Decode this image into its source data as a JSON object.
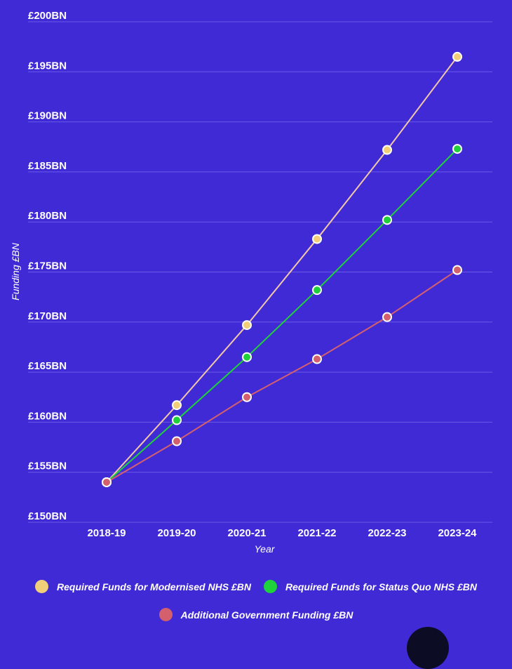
{
  "chart_data": {
    "type": "line",
    "categories": [
      "2018-19",
      "2019-20",
      "2020-21",
      "2021-22",
      "2022-23",
      "2023-24"
    ],
    "xlabel": "Year",
    "ylabel": "Funding £BN",
    "ylim": [
      150,
      200
    ],
    "yticks": [
      150,
      155,
      160,
      165,
      170,
      175,
      180,
      185,
      190,
      195,
      200
    ],
    "ytick_labels": [
      "£150BN",
      "£155BN",
      "£160BN",
      "£165BN",
      "£170BN",
      "£175BN",
      "£180BN",
      "£185BN",
      "£190BN",
      "£195BN",
      "£200BN"
    ],
    "grid": true,
    "legend_position": "bottom",
    "series": [
      {
        "name": "Required Funds for Modernised NHS £BN",
        "color": "#f0cf78",
        "line_color": "#f2c7a8",
        "values": [
          154,
          161.7,
          169.7,
          178.3,
          187.2,
          196.5
        ]
      },
      {
        "name": "Required Funds for Status Quo NHS £BN",
        "color": "#1fd13a",
        "line_color": "#1fd13a",
        "values": [
          154,
          160.2,
          166.5,
          173.2,
          180.2,
          187.3
        ]
      },
      {
        "name": "Additional Government Funding £BN",
        "color": "#d4606e",
        "line_color": "#d4606e",
        "values": [
          154,
          158.1,
          162.5,
          166.3,
          170.5,
          175.2
        ]
      }
    ]
  },
  "legend": {
    "row1": [
      {
        "label": "Required Funds for Modernised NHS £BN",
        "color": "#f0cf78"
      },
      {
        "label": "Required Funds for Status Quo NHS £BN",
        "color": "#1fd13a"
      }
    ],
    "row2": [
      {
        "label": "Additional Government Funding £BN",
        "color": "#d4606e"
      }
    ]
  }
}
